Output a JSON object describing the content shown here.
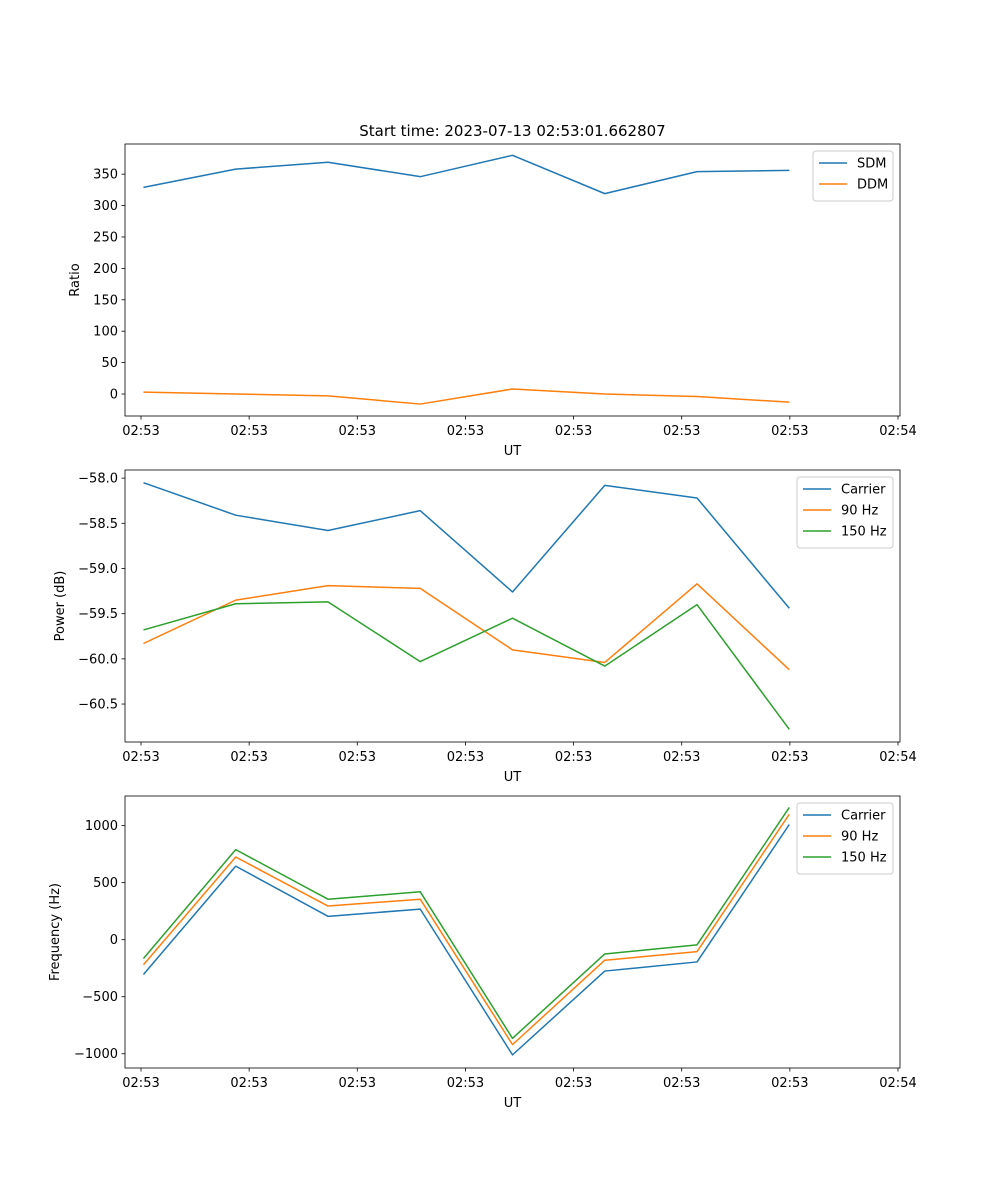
{
  "figure_title": "Start time: 2023-07-13 02:53:01.662807",
  "chart_data": [
    {
      "type": "line",
      "title": "Start time: 2023-07-13 02:53:01.662807",
      "xlabel": "UT",
      "ylabel": "Ratio",
      "x_tick_labels": [
        "02:53",
        "02:53",
        "02:53",
        "02:53",
        "02:53",
        "02:53",
        "02:53"
      ],
      "x_end_tick_label": "02:54",
      "x": [
        1,
        2,
        3,
        4,
        5,
        6,
        7,
        8
      ],
      "xlim": [
        0.8,
        9.2
      ],
      "ylim": [
        -35,
        398
      ],
      "yticks": [
        0,
        50,
        100,
        150,
        200,
        250,
        300,
        350
      ],
      "y_tick_labels": [
        "0",
        "50",
        "100",
        "150",
        "200",
        "250",
        "300",
        "350"
      ],
      "legend": "top-right",
      "series": [
        {
          "name": "SDM",
          "color": "#1f77b4",
          "values": [
            329,
            358,
            369,
            346,
            380,
            319,
            354,
            356
          ]
        },
        {
          "name": "DDM",
          "color": "#ff7f0e",
          "values": [
            3,
            0,
            -3,
            -16,
            8,
            0,
            -4,
            -13
          ]
        }
      ]
    },
    {
      "type": "line",
      "title": "",
      "xlabel": "UT",
      "ylabel": "Power (dB)",
      "x_tick_labels": [
        "02:53",
        "02:53",
        "02:53",
        "02:53",
        "02:53",
        "02:53",
        "02:53"
      ],
      "x_end_tick_label": "02:54",
      "x": [
        1,
        2,
        3,
        4,
        5,
        6,
        7,
        8
      ],
      "xlim": [
        0.8,
        9.2
      ],
      "ylim": [
        -60.92,
        -57.91
      ],
      "yticks": [
        -60.5,
        -60.0,
        -59.5,
        -59.0,
        -58.5,
        -58.0
      ],
      "y_tick_labels": [
        "−60.5",
        "−60.0",
        "−59.5",
        "−59.0",
        "−58.5",
        "−58.0"
      ],
      "legend": "top-right",
      "series": [
        {
          "name": "Carrier",
          "color": "#1f77b4",
          "values": [
            -58.05,
            -58.41,
            -58.58,
            -58.36,
            -59.26,
            -58.08,
            -58.22,
            -59.44
          ]
        },
        {
          "name": "90 Hz",
          "color": "#ff7f0e",
          "values": [
            -59.83,
            -59.35,
            -59.19,
            -59.22,
            -59.9,
            -60.04,
            -59.17,
            -60.12
          ]
        },
        {
          "name": "150 Hz",
          "color": "#2ca02c",
          "values": [
            -59.68,
            -59.39,
            -59.37,
            -60.03,
            -59.55,
            -60.08,
            -59.4,
            -60.78
          ]
        }
      ]
    },
    {
      "type": "line",
      "title": "",
      "xlabel": "UT",
      "ylabel": "Frequency (Hz)",
      "x_tick_labels": [
        "02:53",
        "02:53",
        "02:53",
        "02:53",
        "02:53",
        "02:53",
        "02:53"
      ],
      "x_end_tick_label": "02:54",
      "x": [
        1,
        2,
        3,
        4,
        5,
        6,
        7,
        8
      ],
      "xlim": [
        0.8,
        9.2
      ],
      "ylim": [
        -1125,
        1260
      ],
      "yticks": [
        -1000,
        -500,
        0,
        500,
        1000
      ],
      "y_tick_labels": [
        "−1000",
        "−500",
        "0",
        "500",
        "1000"
      ],
      "legend": "top-right",
      "series": [
        {
          "name": "Carrier",
          "color": "#1f77b4",
          "values": [
            -305,
            645,
            205,
            268,
            -1010,
            -275,
            -195,
            1010
          ]
        },
        {
          "name": "90 Hz",
          "color": "#ff7f0e",
          "values": [
            -220,
            725,
            295,
            355,
            -920,
            -180,
            -105,
            1100
          ]
        },
        {
          "name": "150 Hz",
          "color": "#2ca02c",
          "values": [
            -165,
            790,
            355,
            420,
            -865,
            -125,
            -45,
            1160
          ]
        }
      ]
    }
  ]
}
